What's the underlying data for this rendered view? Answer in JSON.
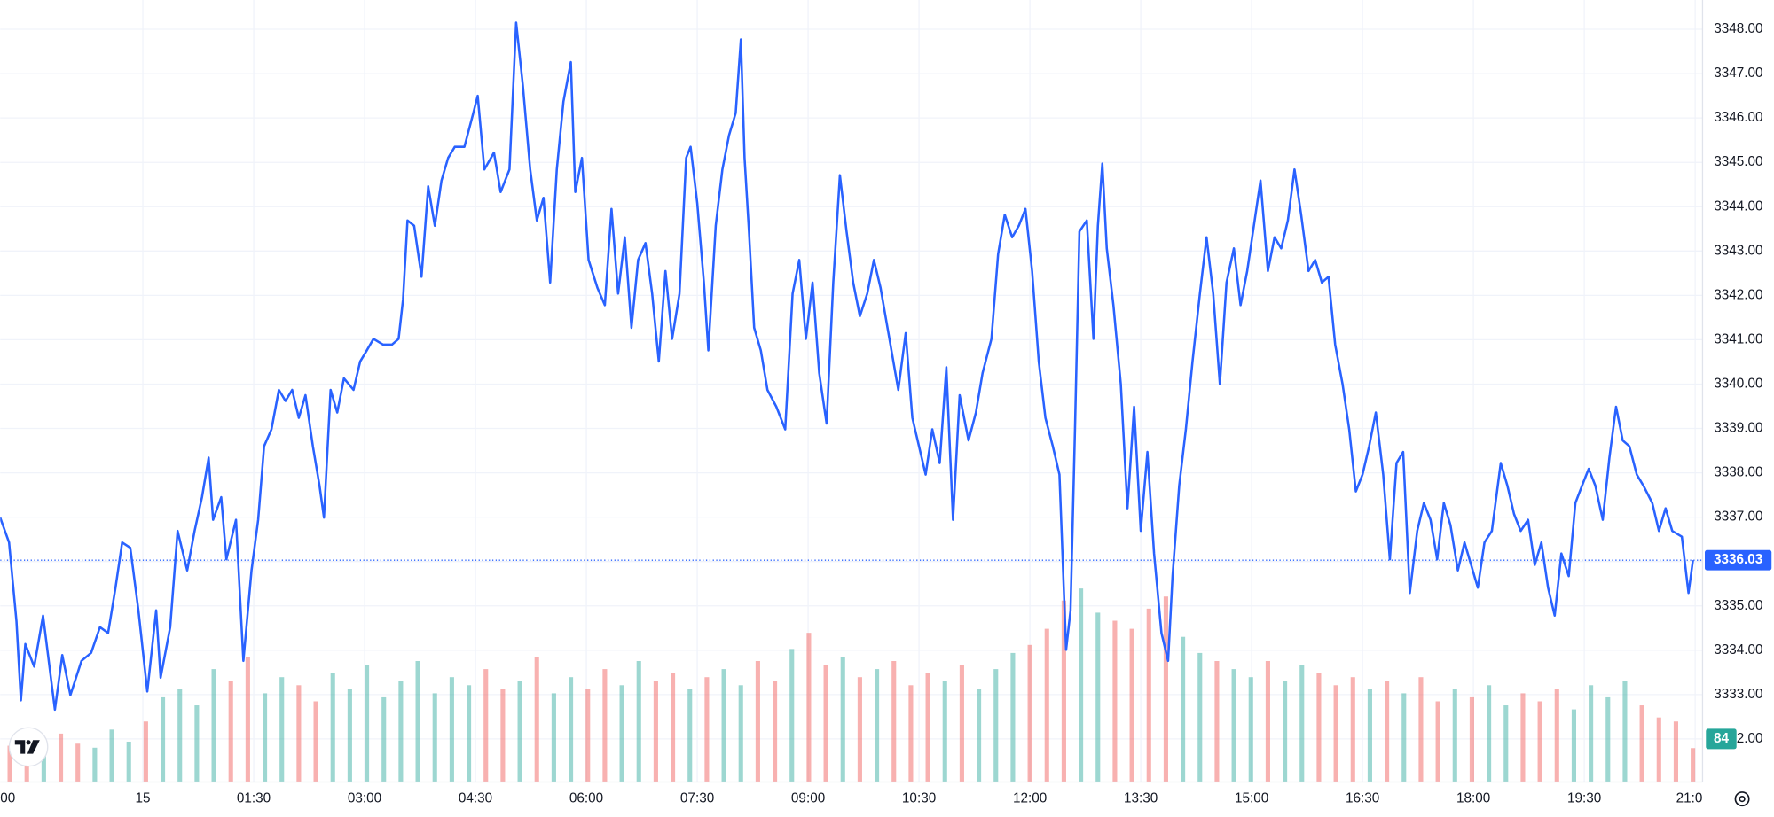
{
  "chart_data": {
    "type": "line",
    "x": [
      -1.93,
      -1.81,
      -1.71,
      -1.65,
      -1.59,
      -1.47,
      -1.35,
      -1.19,
      -1.09,
      -0.98,
      -0.83,
      -0.7,
      -0.58,
      -0.47,
      -0.37,
      -0.28,
      -0.17,
      -0.06,
      0.06,
      0.18,
      0.24,
      0.37,
      0.47,
      0.6,
      0.7,
      0.8,
      0.89,
      0.95,
      1.06,
      1.13,
      1.26,
      1.36,
      1.47,
      1.56,
      1.64,
      1.74,
      1.84,
      1.93,
      2.02,
      2.11,
      2.2,
      2.3,
      2.39,
      2.45,
      2.54,
      2.63,
      2.72,
      2.85,
      2.94,
      3.03,
      3.12,
      3.25,
      3.37,
      3.46,
      3.52,
      3.58,
      3.67,
      3.77,
      3.86,
      3.95,
      4.04,
      4.13,
      4.22,
      4.35,
      4.47,
      4.53,
      4.62,
      4.75,
      4.84,
      4.96,
      5.05,
      5.14,
      5.24,
      5.33,
      5.42,
      5.51,
      5.6,
      5.69,
      5.79,
      5.85,
      5.94,
      6.03,
      6.15,
      6.25,
      6.34,
      6.43,
      6.52,
      6.61,
      6.7,
      6.8,
      6.89,
      6.98,
      7.07,
      7.16,
      7.26,
      7.35,
      7.41,
      7.5,
      7.59,
      7.65,
      7.75,
      7.84,
      7.93,
      8.02,
      8.09,
      8.14,
      8.2,
      8.27,
      8.36,
      8.45,
      8.57,
      8.69,
      8.79,
      8.88,
      8.97,
      9.06,
      9.15,
      9.25,
      9.34,
      9.43,
      9.52,
      9.61,
      9.7,
      9.8,
      9.89,
      9.98,
      10.1,
      10.22,
      10.32,
      10.41,
      10.5,
      10.59,
      10.68,
      10.78,
      10.87,
      10.96,
      11.05,
      11.17,
      11.27,
      11.36,
      11.48,
      11.57,
      11.66,
      11.76,
      11.85,
      11.94,
      12.03,
      12.12,
      12.21,
      12.31,
      12.4,
      12.49,
      12.55,
      12.61,
      12.67,
      12.77,
      12.86,
      12.92,
      12.98,
      13.04,
      13.13,
      13.23,
      13.32,
      13.41,
      13.5,
      13.59,
      13.68,
      13.78,
      13.87,
      13.93,
      14.02,
      14.11,
      14.2,
      14.3,
      14.39,
      14.48,
      14.57,
      14.66,
      14.76,
      14.85,
      14.94,
      15.03,
      15.12,
      15.22,
      15.31,
      15.4,
      15.49,
      15.58,
      15.67,
      15.77,
      15.86,
      15.95,
      16.04,
      16.13,
      16.23,
      16.32,
      16.41,
      16.5,
      16.59,
      16.68,
      16.78,
      16.87,
      16.96,
      17.05,
      17.14,
      17.24,
      17.33,
      17.42,
      17.51,
      17.6,
      17.69,
      17.79,
      17.88,
      17.97,
      18.06,
      18.15,
      18.25,
      18.37,
      18.46,
      18.55,
      18.64,
      18.74,
      18.83,
      18.92,
      19.01,
      19.1,
      19.19,
      19.29,
      19.38,
      19.47,
      19.56,
      19.65,
      19.75,
      19.84,
      19.93,
      20.02,
      20.11,
      20.21,
      20.3,
      20.42,
      20.51,
      20.6,
      20.69,
      20.82,
      20.91,
      20.97
    ],
    "series": [
      {
        "color": "#2962ff",
        "values": [
          3336.99,
          3336.43,
          3334.65,
          3332.87,
          3334.14,
          3333.63,
          3334.78,
          3332.66,
          3333.89,
          3332.99,
          3333.76,
          3333.94,
          3334.52,
          3334.39,
          3335.41,
          3336.43,
          3336.31,
          3334.9,
          3333.07,
          3334.9,
          3333.38,
          3334.52,
          3336.69,
          3335.8,
          3336.69,
          3337.45,
          3338.34,
          3336.94,
          3337.45,
          3336.05,
          3336.94,
          3333.76,
          3335.8,
          3336.94,
          3338.6,
          3338.98,
          3339.87,
          3339.62,
          3339.87,
          3339.24,
          3339.75,
          3338.6,
          3337.71,
          3336.99,
          3339.87,
          3339.36,
          3340.13,
          3339.87,
          3340.51,
          3340.76,
          3341.02,
          3340.89,
          3340.89,
          3341.02,
          3341.91,
          3343.69,
          3343.57,
          3342.42,
          3344.46,
          3343.57,
          3344.59,
          3345.1,
          3345.35,
          3345.35,
          3346.11,
          3346.5,
          3344.84,
          3345.22,
          3344.33,
          3344.84,
          3348.15,
          3346.75,
          3344.84,
          3343.69,
          3344.2,
          3342.29,
          3344.84,
          3346.37,
          3347.26,
          3344.33,
          3345.1,
          3342.8,
          3342.17,
          3341.78,
          3343.95,
          3342.04,
          3343.31,
          3341.27,
          3342.8,
          3343.18,
          3342.04,
          3340.51,
          3342.55,
          3341.02,
          3342.04,
          3345.1,
          3345.35,
          3344.08,
          3342.29,
          3340.76,
          3343.57,
          3344.84,
          3345.61,
          3346.11,
          3347.77,
          3345.1,
          3343.44,
          3341.27,
          3340.76,
          3339.87,
          3339.49,
          3338.98,
          3342.04,
          3342.8,
          3341.02,
          3342.29,
          3340.25,
          3339.11,
          3342.29,
          3344.71,
          3343.44,
          3342.29,
          3341.53,
          3342.04,
          3342.8,
          3342.17,
          3341.02,
          3339.87,
          3341.15,
          3339.24,
          3338.6,
          3337.96,
          3338.98,
          3338.22,
          3340.38,
          3336.94,
          3339.75,
          3338.73,
          3339.36,
          3340.25,
          3341.02,
          3342.93,
          3343.82,
          3343.31,
          3343.57,
          3343.95,
          3342.55,
          3340.51,
          3339.24,
          3338.6,
          3337.96,
          3334.01,
          3334.9,
          3338.98,
          3343.44,
          3343.69,
          3341.02,
          3343.57,
          3344.97,
          3343.06,
          3341.78,
          3340.0,
          3337.2,
          3339.49,
          3336.69,
          3338.47,
          3336.18,
          3334.39,
          3333.76,
          3335.67,
          3337.71,
          3338.98,
          3340.51,
          3342.04,
          3343.31,
          3342.04,
          3340.0,
          3342.29,
          3343.06,
          3341.78,
          3342.55,
          3343.57,
          3344.59,
          3342.55,
          3343.31,
          3343.06,
          3343.69,
          3344.84,
          3343.82,
          3342.55,
          3342.8,
          3342.29,
          3342.42,
          3340.89,
          3340.0,
          3338.98,
          3337.58,
          3337.96,
          3338.6,
          3339.36,
          3337.96,
          3336.05,
          3338.22,
          3338.47,
          3335.29,
          3336.69,
          3337.32,
          3336.94,
          3336.05,
          3337.32,
          3336.82,
          3335.8,
          3336.43,
          3335.92,
          3335.41,
          3336.43,
          3336.69,
          3338.22,
          3337.71,
          3337.07,
          3336.69,
          3336.94,
          3335.92,
          3336.43,
          3335.41,
          3334.78,
          3336.18,
          3335.67,
          3337.32,
          3337.71,
          3338.09,
          3337.71,
          3336.94,
          3338.34,
          3339.49,
          3338.73,
          3338.6,
          3337.96,
          3337.71,
          3337.32,
          3336.69,
          3337.2,
          3336.69,
          3336.56,
          3335.29,
          3336.03
        ]
      }
    ],
    "last_value_label": "3336.03",
    "xlim": [
      -1.93,
      21.1
    ],
    "xticks": [
      {
        "value": -2,
        "label": "00"
      },
      {
        "value": 0,
        "label": "15"
      },
      {
        "value": 1.5,
        "label": "01:30"
      },
      {
        "value": 3,
        "label": "03:00"
      },
      {
        "value": 4.5,
        "label": "04:30"
      },
      {
        "value": 6,
        "label": "06:00"
      },
      {
        "value": 7.5,
        "label": "07:30"
      },
      {
        "value": 9,
        "label": "09:00"
      },
      {
        "value": 10.5,
        "label": "10:30"
      },
      {
        "value": 12,
        "label": "12:00"
      },
      {
        "value": 13.5,
        "label": "13:30"
      },
      {
        "value": 15,
        "label": "15:00"
      },
      {
        "value": 16.5,
        "label": "16:30"
      },
      {
        "value": 18,
        "label": "18:00"
      },
      {
        "value": 19.5,
        "label": "19:30"
      },
      {
        "value": 21,
        "label": "21:0"
      }
    ],
    "ylim": [
      3331.03,
      3348.66
    ],
    "yticks": [
      {
        "value": 3332,
        "label": "3332.00"
      },
      {
        "value": 3333,
        "label": "3333.00"
      },
      {
        "value": 3334,
        "label": "3334.00"
      },
      {
        "value": 3335,
        "label": "3335.00"
      },
      {
        "value": 3336,
        "label": "3336.00"
      },
      {
        "value": 3337,
        "label": "3337.00"
      },
      {
        "value": 3338,
        "label": "3338.00"
      },
      {
        "value": 3339,
        "label": "3339.00"
      },
      {
        "value": 3340,
        "label": "3340.00"
      },
      {
        "value": 3341,
        "label": "3341.00"
      },
      {
        "value": 3342,
        "label": "3342.00"
      },
      {
        "value": 3343,
        "label": "3343.00"
      },
      {
        "value": 3344,
        "label": "3344.00"
      },
      {
        "value": 3345,
        "label": "3345.00"
      },
      {
        "value": 3346,
        "label": "3346.00"
      },
      {
        "value": 3347,
        "label": "3347.00"
      },
      {
        "value": 3348,
        "label": "3348.00"
      }
    ],
    "grid": true,
    "volume": {
      "x": [
        -1.8,
        -1.57,
        -1.34,
        -1.11,
        -0.88,
        -0.65,
        -0.42,
        -0.19,
        0.04,
        0.27,
        0.5,
        0.73,
        0.96,
        1.19,
        1.42,
        1.65,
        1.88,
        2.11,
        2.34,
        2.57,
        2.8,
        3.03,
        3.26,
        3.49,
        3.72,
        3.95,
        4.18,
        4.41,
        4.64,
        4.87,
        5.1,
        5.33,
        5.56,
        5.79,
        6.02,
        6.25,
        6.48,
        6.71,
        6.94,
        7.17,
        7.4,
        7.63,
        7.86,
        8.09,
        8.32,
        8.55,
        8.78,
        9.01,
        9.24,
        9.47,
        9.7,
        9.93,
        10.16,
        10.39,
        10.62,
        10.85,
        11.08,
        11.31,
        11.54,
        11.77,
        12.0,
        12.23,
        12.46,
        12.69,
        12.92,
        13.15,
        13.38,
        13.61,
        13.84,
        14.07,
        14.3,
        14.53,
        14.76,
        14.99,
        15.22,
        15.45,
        15.68,
        15.91,
        16.14,
        16.37,
        16.6,
        16.83,
        17.06,
        17.29,
        17.52,
        17.75,
        17.98,
        18.21,
        18.44,
        18.67,
        18.9,
        19.13,
        19.36,
        19.59,
        19.82,
        20.05,
        20.28,
        20.51,
        20.74,
        20.97
      ],
      "values": [
        90,
        110,
        80,
        120,
        95,
        85,
        130,
        100,
        150,
        210,
        230,
        190,
        280,
        250,
        310,
        220,
        260,
        240,
        200,
        270,
        230,
        290,
        210,
        250,
        300,
        220,
        260,
        240,
        280,
        230,
        250,
        310,
        220,
        260,
        230,
        280,
        240,
        300,
        250,
        270,
        230,
        260,
        280,
        240,
        300,
        250,
        330,
        370,
        290,
        310,
        260,
        280,
        300,
        240,
        270,
        250,
        290,
        230,
        280,
        320,
        340,
        380,
        450,
        480,
        420,
        400,
        380,
        430,
        460,
        360,
        320,
        300,
        280,
        260,
        300,
        250,
        290,
        270,
        240,
        260,
        230,
        250,
        220,
        260,
        200,
        230,
        210,
        240,
        190,
        220,
        200,
        230,
        180,
        240,
        210,
        250,
        190,
        160,
        150,
        84
      ],
      "last_value_label": "84",
      "ylim": [
        0,
        1940
      ],
      "up_color": "#26a69a",
      "down_color": "#ef5350"
    }
  }
}
